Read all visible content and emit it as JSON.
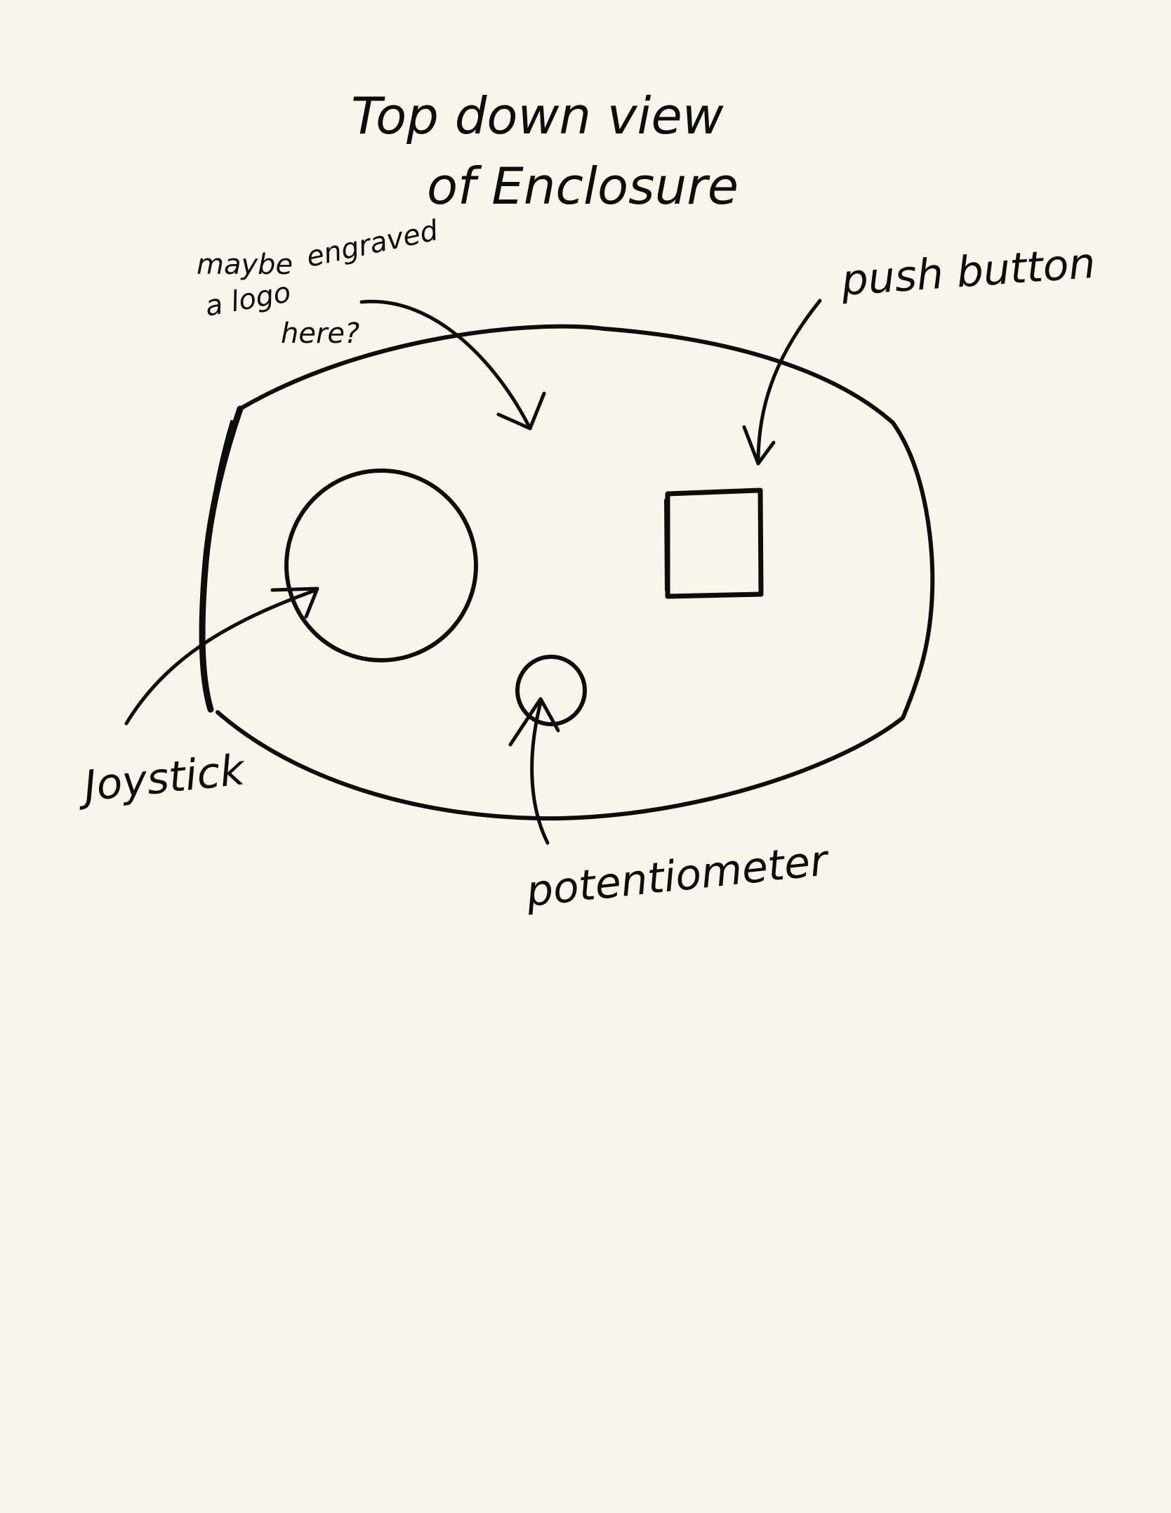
{
  "canvas": {
    "background": "#f8f6ea",
    "ink": "#0d0d0d"
  },
  "title": {
    "line1": "Top down view",
    "line2": "of Enclosure"
  },
  "annotations": {
    "logo_note_line1": "maybe",
    "logo_note_line1b": "engraved",
    "logo_note_line2": "a logo",
    "logo_note_line3": "here?",
    "push_button": "push button",
    "joystick": "Joystick",
    "potentiometer": "potentiometer"
  }
}
